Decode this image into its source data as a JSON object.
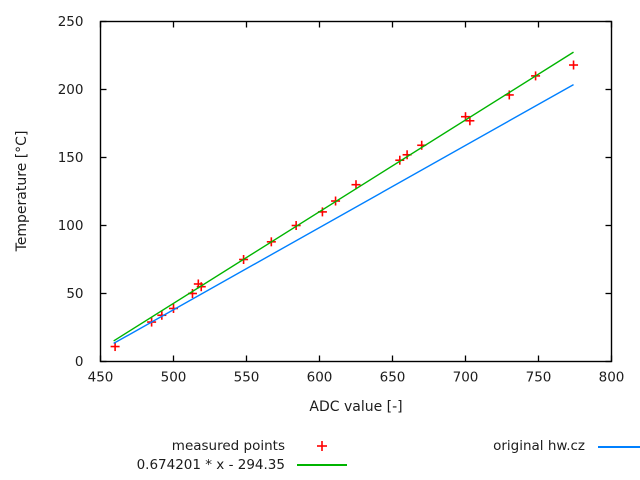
{
  "chart_data": {
    "type": "scatter",
    "title": "",
    "xlabel": "ADC value [-]",
    "ylabel": "Temperature [°C]",
    "xlim": [
      450,
      800
    ],
    "ylim": [
      0,
      250
    ],
    "x_ticks": [
      450,
      500,
      550,
      600,
      650,
      700,
      750,
      800
    ],
    "y_ticks": [
      0,
      50,
      100,
      150,
      200,
      250
    ],
    "grid": false,
    "legend_position": "below-plot",
    "background_color": "#ffffff",
    "axis_color": "#000000",
    "text_color": "#1c1c1c",
    "series": [
      {
        "name": "measured points",
        "type": "points",
        "marker": "plus",
        "color": "#ff0000",
        "points": [
          [
            460,
            11
          ],
          [
            485,
            29
          ],
          [
            492,
            34
          ],
          [
            500,
            39
          ],
          [
            513,
            50
          ],
          [
            517,
            57
          ],
          [
            519,
            55
          ],
          [
            548,
            75
          ],
          [
            567,
            88
          ],
          [
            584,
            100
          ],
          [
            602,
            110
          ],
          [
            611,
            118
          ],
          [
            625,
            130
          ],
          [
            655,
            148
          ],
          [
            660,
            152
          ],
          [
            670,
            159
          ],
          [
            700,
            180
          ],
          [
            703,
            177
          ],
          [
            730,
            196
          ],
          [
            748,
            210
          ],
          [
            774,
            218
          ]
        ]
      },
      {
        "name": "0.674201 * x - 294.35",
        "type": "line",
        "color": "#00b400",
        "slope": 0.674201,
        "intercept": -294.35,
        "x_range": [
          459,
          774
        ]
      },
      {
        "name": "original hw.cz",
        "type": "line",
        "color": "#0080ff",
        "points": [
          [
            459,
            13.3
          ],
          [
            774,
            203.6
          ]
        ]
      }
    ]
  }
}
